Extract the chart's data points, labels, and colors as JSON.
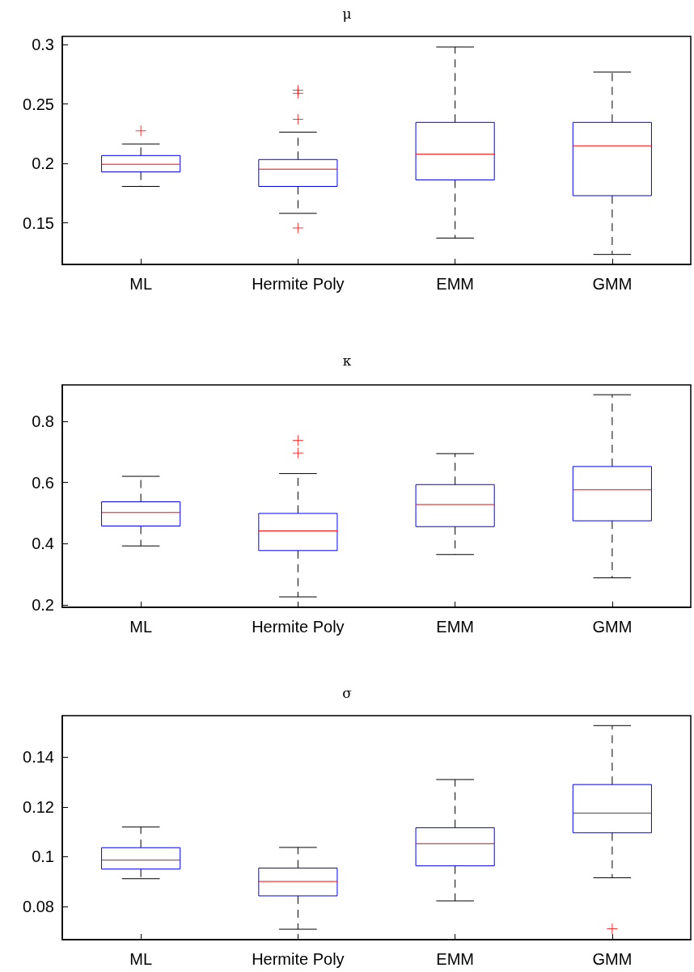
{
  "chart_data": [
    {
      "type": "box",
      "title": "μ",
      "categories": [
        "ML",
        "Hermite Poly",
        "EMM",
        "GMM"
      ],
      "ylim": [
        0.115,
        0.307
      ],
      "yticks": [
        0.15,
        0.2,
        0.25,
        0.3
      ],
      "grid": false,
      "marker": "cross",
      "series": [
        {
          "color": "#0000ff",
          "boxes": [
            {
              "low": 0.1807,
              "q1": 0.1929,
              "median": 0.1993,
              "q3": 0.2067,
              "high": 0.2164,
              "outliers": [
                0.2275
              ]
            },
            {
              "low": 0.158,
              "q1": 0.1807,
              "median": 0.1952,
              "q3": 0.2033,
              "high": 0.2264,
              "outliers": [
                0.2617,
                0.2591,
                0.2372,
                0.1457
              ]
            },
            {
              "low": 0.1372,
              "q1": 0.1862,
              "median": 0.2078,
              "q3": 0.2346,
              "high": 0.2981
            },
            {
              "low": 0.1234,
              "q1": 0.1729,
              "median": 0.2149,
              "q3": 0.2346,
              "high": 0.277
            }
          ]
        }
      ]
    },
    {
      "type": "box",
      "title": "κ",
      "categories": [
        "ML",
        "Hermite Poly",
        "EMM",
        "GMM"
      ],
      "ylim": [
        0.193,
        0.918
      ],
      "yticks": [
        0.2,
        0.4,
        0.6,
        0.8
      ],
      "grid": false,
      "marker": "cross",
      "series": [
        {
          "color": "#0000ff",
          "boxes": [
            {
              "low": 0.393,
              "q1": 0.458,
              "median": 0.502,
              "q3": 0.537,
              "high": 0.62
            },
            {
              "low": 0.227,
              "q1": 0.378,
              "median": 0.442,
              "q3": 0.499,
              "high": 0.629,
              "outliers": [
                0.737,
                0.696
              ]
            },
            {
              "low": 0.365,
              "q1": 0.456,
              "median": 0.528,
              "q3": 0.593,
              "high": 0.694
            },
            {
              "low": 0.289,
              "q1": 0.475,
              "median": 0.576,
              "q3": 0.652,
              "high": 0.886
            }
          ]
        }
      ]
    },
    {
      "type": "box",
      "title": "σ",
      "categories": [
        "ML",
        "Hermite Poly",
        "EMM",
        "GMM"
      ],
      "ylim": [
        0.0666,
        0.1567
      ],
      "yticks": [
        0.08,
        0.1,
        0.12,
        0.14
      ],
      "grid": false,
      "marker": "cross",
      "series": [
        {
          "color": "#0000ff",
          "boxes": [
            {
              "low": 0.0911,
              "q1": 0.095,
              "median": 0.0986,
              "q3": 0.1036,
              "high": 0.1119
            },
            {
              "low": 0.0708,
              "q1": 0.0842,
              "median": 0.09,
              "q3": 0.0954,
              "high": 0.1037
            },
            {
              "low": 0.0822,
              "q1": 0.0963,
              "median": 0.1052,
              "q3": 0.1116,
              "high": 0.131
            },
            {
              "low": 0.0915,
              "q1": 0.1096,
              "median": 0.1175,
              "q3": 0.129,
              "high": 0.1527,
              "outliers": [
                0.071
              ]
            }
          ]
        }
      ]
    }
  ]
}
